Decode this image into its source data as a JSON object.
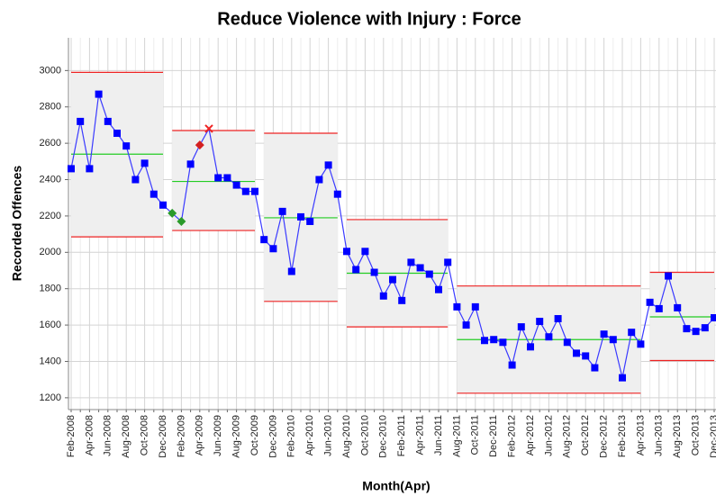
{
  "chart_data": {
    "type": "control",
    "title": "Reduce Violence with Injury : Force",
    "x_label": "Month(Apr)",
    "y_label": "Recorded Offences",
    "categories": [
      "Feb-2008",
      null,
      "Apr-2008",
      null,
      "Jun-2008",
      null,
      "Aug-2008",
      null,
      "Oct-2008",
      null,
      "Dec-2008",
      null,
      "Feb-2009",
      null,
      "Apr-2009",
      null,
      "Jun-2009",
      null,
      "Aug-2009",
      null,
      "Oct-2009",
      null,
      "Dec-2009",
      null,
      "Feb-2010",
      null,
      "Apr-2010",
      null,
      "Jun-2010",
      null,
      "Aug-2010",
      null,
      "Oct-2010",
      null,
      "Dec-2010",
      null,
      "Feb-2011",
      null,
      "Apr-2011",
      null,
      "Jun-2011",
      null,
      "Aug-2011",
      null,
      "Oct-2011",
      null,
      "Dec-2011",
      null,
      "Feb-2012",
      null,
      "Apr-2012",
      null,
      "Jun-2012",
      null,
      "Aug-2012",
      null,
      "Oct-2012",
      null,
      "Dec-2012",
      null,
      "Feb-2013",
      null,
      "Apr-2013",
      null,
      "Jun-2013",
      null,
      "Aug-2013",
      null,
      "Oct-2013",
      null,
      "Dec-2013"
    ],
    "values": [
      2460,
      2720,
      2460,
      2870,
      2720,
      2655,
      2585,
      2400,
      2490,
      2320,
      2260,
      2215,
      2170,
      2485,
      2590,
      2680,
      2410,
      2410,
      2370,
      2335,
      2335,
      2070,
      2020,
      2225,
      1895,
      2195,
      2170,
      2400,
      2480,
      2320,
      2005,
      1905,
      2005,
      1890,
      1760,
      1850,
      1735,
      1945,
      1915,
      1880,
      1795,
      1945,
      1700,
      1600,
      1700,
      1515,
      1520,
      1505,
      1380,
      1590,
      1480,
      1620,
      1535,
      1635,
      1505,
      1445,
      1430,
      1365,
      1550,
      1520,
      1310,
      1560,
      1495,
      1725,
      1690,
      1870,
      1695,
      1580,
      1565,
      1585,
      1640
    ],
    "markers": [
      "square",
      "square",
      "square",
      "square",
      "square",
      "square",
      "square",
      "square",
      "square",
      "square",
      "square",
      "diamond-green",
      "diamond-green",
      "square",
      "diamond-red",
      "cross-red",
      "square",
      "square",
      "square",
      "square",
      "square",
      "square",
      "square",
      "square",
      "square",
      "square",
      "square",
      "square",
      "square",
      "square",
      "square",
      "square",
      "square",
      "square",
      "square",
      "square",
      "square",
      "square",
      "square",
      "square",
      "square",
      "square",
      "square",
      "square",
      "square",
      "square",
      "square",
      "square",
      "square",
      "square",
      "square",
      "square",
      "square",
      "square",
      "square",
      "square",
      "square",
      "square",
      "square",
      "square",
      "square",
      "square",
      "square",
      "square",
      "square",
      "square",
      "square",
      "square",
      "square",
      "square",
      "square"
    ],
    "limits": {
      "upper": [
        2990,
        2990,
        2990,
        2990,
        2990,
        2990,
        2990,
        2990,
        2990,
        2990,
        2990,
        2670,
        2670,
        2670,
        2670,
        2670,
        2670,
        2670,
        2670,
        2670,
        2670,
        2655,
        2655,
        2655,
        2655,
        2655,
        2655,
        2655,
        2655,
        2655,
        2180,
        2180,
        2180,
        2180,
        2180,
        2180,
        2180,
        2180,
        2180,
        2180,
        2180,
        2180,
        1815,
        1815,
        1815,
        1815,
        1815,
        1815,
        1815,
        1815,
        1815,
        1815,
        1815,
        1815,
        1815,
        1815,
        1815,
        1815,
        1815,
        1815,
        1815,
        1815,
        1815,
        1890,
        1890,
        1890,
        1890,
        1890,
        1890,
        1890,
        1890
      ],
      "mean": [
        2540,
        2540,
        2540,
        2540,
        2540,
        2540,
        2540,
        2540,
        2540,
        2540,
        2540,
        2390,
        2390,
        2390,
        2390,
        2390,
        2390,
        2390,
        2390,
        2390,
        2390,
        2190,
        2190,
        2190,
        2190,
        2190,
        2190,
        2190,
        2190,
        2190,
        1885,
        1885,
        1885,
        1885,
        1885,
        1885,
        1885,
        1885,
        1885,
        1885,
        1885,
        1885,
        1520,
        1520,
        1520,
        1520,
        1520,
        1520,
        1520,
        1520,
        1520,
        1520,
        1520,
        1520,
        1520,
        1520,
        1520,
        1520,
        1520,
        1520,
        1520,
        1520,
        1520,
        1645,
        1645,
        1645,
        1645,
        1645,
        1645,
        1645,
        1645
      ],
      "lower": [
        2085,
        2085,
        2085,
        2085,
        2085,
        2085,
        2085,
        2085,
        2085,
        2085,
        2085,
        2120,
        2120,
        2120,
        2120,
        2120,
        2120,
        2120,
        2120,
        2120,
        2120,
        1730,
        1730,
        1730,
        1730,
        1730,
        1730,
        1730,
        1730,
        1730,
        1590,
        1590,
        1590,
        1590,
        1590,
        1590,
        1590,
        1590,
        1590,
        1590,
        1590,
        1590,
        1225,
        1225,
        1225,
        1225,
        1225,
        1225,
        1225,
        1225,
        1225,
        1225,
        1225,
        1225,
        1225,
        1225,
        1225,
        1225,
        1225,
        1225,
        1225,
        1225,
        1225,
        1405,
        1405,
        1405,
        1405,
        1405,
        1405,
        1405,
        1405
      ]
    },
    "color": "#0000ff",
    "line_color": "#3a3aff",
    "limit_color": "#ee2222",
    "mean_color": "#22cc22",
    "band_color": "#efefef",
    "ylim": [
      1135,
      3180
    ],
    "yticks": [
      1200,
      1400,
      1600,
      1800,
      2000,
      2200,
      2400,
      2600,
      2800,
      3000
    ],
    "grid": true
  }
}
